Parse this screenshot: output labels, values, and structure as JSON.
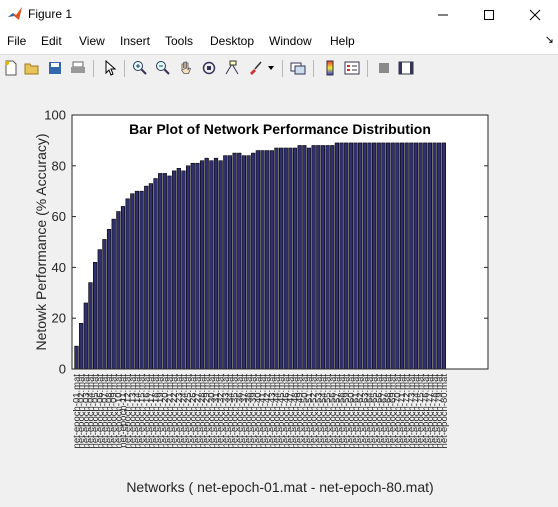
{
  "window": {
    "title": "Figure 1"
  },
  "menu": [
    "File",
    "Edit",
    "View",
    "Insert",
    "Tools",
    "Desktop",
    "Window",
    "Help"
  ],
  "toolbar_icons": [
    "new-figure-icon",
    "open-file-icon",
    "save-icon",
    "print-icon",
    "select-arrow-icon",
    "zoom-in-icon",
    "zoom-out-icon",
    "pan-hand-icon",
    "rotate-3d-icon",
    "data-cursor-icon",
    "brush-icon",
    "brush-dropdown-icon",
    "link-plot-icon",
    "colorbar-icon",
    "legend-icon",
    "hide-plot-tools-icon",
    "show-plot-tools-icon"
  ],
  "chart_data": {
    "type": "bar",
    "title": "Bar Plot of Network Performance Distribution",
    "xlabel": "Networks ( net-epoch-01.mat - net-epoch-80.mat)",
    "ylabel": "Netowk Performance (% Accuracy)",
    "ylim": [
      0,
      100
    ],
    "yticks": [
      "0",
      "20",
      "40",
      "60",
      "80",
      "100"
    ],
    "categories": [
      "net-epoch-01.mat",
      "net-epoch-02.mat",
      "net-epoch-03.mat",
      "net-epoch-04.mat",
      "net-epoch-05.mat",
      "net-epoch-06.mat",
      "net-epoch-07.mat",
      "net-epoch-08.mat",
      "net-epoch-09.mat",
      "net-epoch-10.mat",
      "net-epoch-11.mat",
      "net-epoch-12.mat",
      "net-epoch-13.mat",
      "net-epoch-14.mat",
      "net-epoch-15.mat",
      "net-epoch-16.mat",
      "net-epoch-17.mat",
      "net-epoch-18.mat",
      "net-epoch-19.mat",
      "net-epoch-20.mat",
      "net-epoch-21.mat",
      "net-epoch-22.mat",
      "net-epoch-23.mat",
      "net-epoch-24.mat",
      "net-epoch-25.mat",
      "net-epoch-26.mat",
      "net-epoch-27.mat",
      "net-epoch-28.mat",
      "net-epoch-29.mat",
      "net-epoch-30.mat",
      "net-epoch-31.mat",
      "net-epoch-32.mat",
      "net-epoch-33.mat",
      "net-epoch-34.mat",
      "net-epoch-35.mat",
      "net-epoch-36.mat",
      "net-epoch-37.mat",
      "net-epoch-38.mat",
      "net-epoch-39.mat",
      "net-epoch-40.mat",
      "net-epoch-41.mat",
      "net-epoch-42.mat",
      "net-epoch-43.mat",
      "net-epoch-44.mat",
      "net-epoch-45.mat",
      "net-epoch-46.mat",
      "net-epoch-47.mat",
      "net-epoch-48.mat",
      "net-epoch-49.mat",
      "net-epoch-50.mat",
      "net-epoch-51.mat",
      "net-epoch-52.mat",
      "net-epoch-53.mat",
      "net-epoch-54.mat",
      "net-epoch-55.mat",
      "net-epoch-56.mat",
      "net-epoch-57.mat",
      "net-epoch-58.mat",
      "net-epoch-59.mat",
      "net-epoch-60.mat",
      "net-epoch-61.mat",
      "net-epoch-62.mat",
      "net-epoch-63.mat",
      "net-epoch-64.mat",
      "net-epoch-65.mat",
      "net-epoch-66.mat",
      "net-epoch-67.mat",
      "net-epoch-68.mat",
      "net-epoch-69.mat",
      "net-epoch-70.mat",
      "net-epoch-71.mat",
      "net-epoch-72.mat",
      "net-epoch-73.mat",
      "net-epoch-74.mat",
      "net-epoch-75.mat",
      "net-epoch-76.mat",
      "net-epoch-77.mat",
      "net-epoch-78.mat",
      "net-epoch-79.mat",
      "net-epoch-80.mat"
    ],
    "values": [
      9,
      18,
      26,
      34,
      42,
      47,
      51,
      55,
      59,
      62,
      64,
      67,
      69,
      70,
      70,
      72,
      73,
      75,
      77,
      77,
      76,
      78,
      79,
      78,
      80,
      81,
      81,
      82,
      83,
      82,
      83,
      82,
      84,
      84,
      85,
      85,
      84,
      84,
      85,
      86,
      86,
      86,
      86,
      87,
      87,
      87,
      87,
      87,
      88,
      88,
      87,
      88,
      88,
      88,
      88,
      88,
      89,
      89,
      89,
      89,
      89,
      89,
      89,
      89,
      89,
      89,
      89,
      89,
      89,
      89,
      89,
      89,
      89,
      89,
      89,
      89,
      89,
      89,
      89,
      89
    ],
    "grid": false,
    "legend": "none",
    "colors": {
      "bar_fill": "#30306e",
      "bar_edge": "#000000",
      "axes_bg": "#ffffff"
    }
  }
}
